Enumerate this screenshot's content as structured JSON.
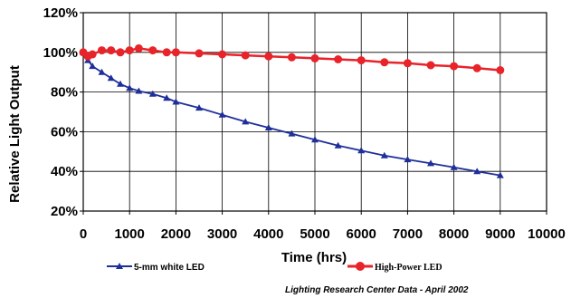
{
  "chart_data": {
    "type": "line",
    "xlabel": "Time (hrs)",
    "ylabel": "Relative Light Output",
    "xlim": [
      0,
      10000
    ],
    "ylim": [
      20,
      120
    ],
    "x_ticks": [
      "0",
      "1000",
      "2000",
      "3000",
      "4000",
      "5000",
      "6000",
      "7000",
      "8000",
      "9000",
      "10000"
    ],
    "y_ticks": [
      "20%",
      "40%",
      "60%",
      "80%",
      "100%",
      "120%"
    ],
    "grid": true,
    "legend_position": "bottom",
    "annotation": "Lighting Research Center Data - April 2002",
    "series": [
      {
        "name": "5-mm white LED",
        "color": "#1f2f9a",
        "marker": "triangle",
        "x": [
          0,
          100,
          200,
          400,
          600,
          800,
          1000,
          1200,
          1500,
          1800,
          2000,
          2500,
          3000,
          3500,
          4000,
          4500,
          5000,
          5500,
          6000,
          6500,
          7000,
          7500,
          8000,
          8500,
          9000
        ],
        "values": [
          100,
          96,
          93,
          90,
          87,
          84,
          82,
          80.5,
          79,
          77,
          75,
          72,
          68.5,
          65,
          62,
          59,
          56,
          53,
          50.5,
          48,
          46,
          44,
          42,
          40,
          38
        ]
      },
      {
        "name": "High-Power LED",
        "color": "#e8232a",
        "marker": "circle",
        "x": [
          0,
          100,
          200,
          400,
          600,
          800,
          1000,
          1200,
          1500,
          1800,
          2000,
          2500,
          3000,
          3500,
          4000,
          4500,
          5000,
          5500,
          6000,
          6500,
          7000,
          7500,
          8000,
          8500,
          9000
        ],
        "values": [
          100,
          98,
          99,
          101,
          101,
          100,
          101,
          102,
          101,
          100,
          100,
          99.5,
          99,
          98.5,
          98,
          97.5,
          97,
          96.5,
          96,
          95,
          94.5,
          93.5,
          93,
          92,
          91
        ]
      }
    ]
  }
}
